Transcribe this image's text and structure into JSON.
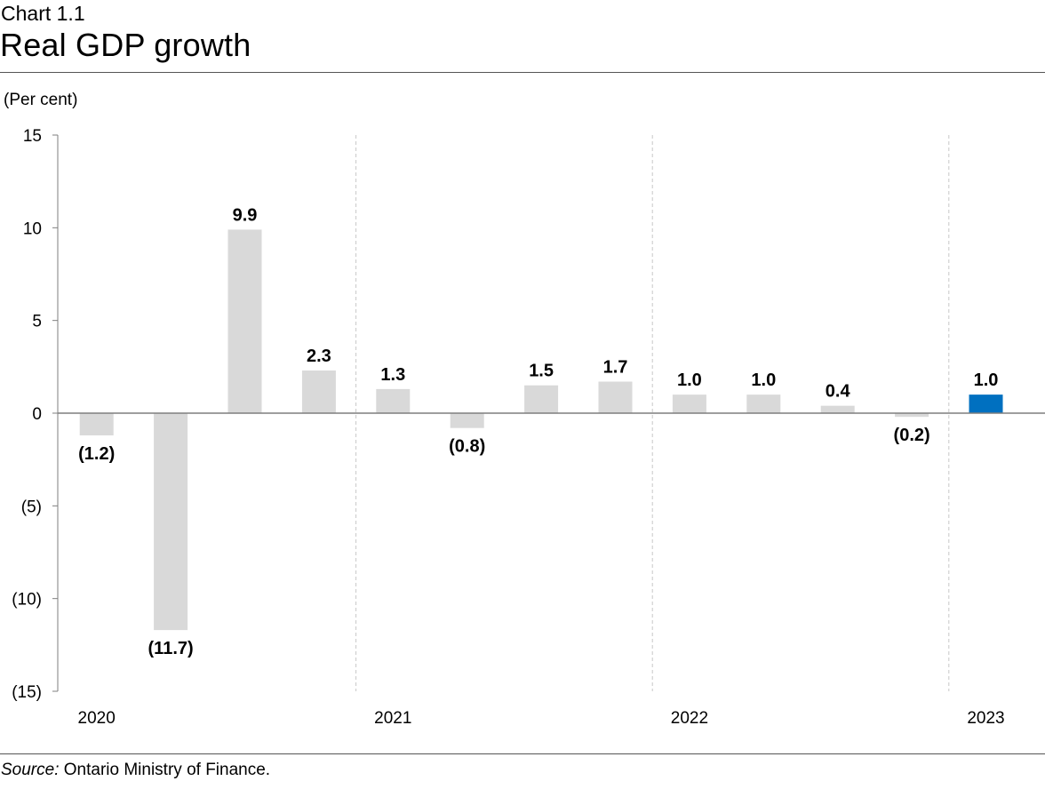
{
  "header": {
    "chart_number": "Chart 1.1",
    "title": "Real GDP growth"
  },
  "unit_label": "(Per cent)",
  "source": {
    "prefix": "Source:",
    "text": " Ontario Ministry of Finance."
  },
  "colors": {
    "bar": "#d9d9d9",
    "highlight": "#0070c0",
    "axis": "#7f7f7f",
    "divider": "#c8c8c8"
  },
  "chart_data": {
    "type": "bar",
    "title": "Real GDP growth",
    "ylabel": "(Per cent)",
    "xlabel": "",
    "ylim": [
      -15,
      15
    ],
    "yticks": [
      15,
      10,
      5,
      0,
      -5,
      -10,
      -15
    ],
    "ytick_labels": [
      "15",
      "10",
      "5",
      "0",
      "(5)",
      "(10)",
      "(15)"
    ],
    "year_labels": [
      "2020",
      "2021",
      "2022",
      "2023"
    ],
    "values": [
      -1.2,
      -11.7,
      9.9,
      2.3,
      1.3,
      -0.8,
      1.5,
      1.7,
      1.0,
      1.0,
      0.4,
      -0.2,
      1.0
    ],
    "value_labels": [
      "(1.2)",
      "(11.7)",
      "9.9",
      "2.3",
      "1.3",
      "(0.8)",
      "1.5",
      "1.7",
      "1.0",
      "1.0",
      "0.4",
      "(0.2)",
      "1.0"
    ],
    "highlight_index": 12,
    "grid": false,
    "legend": "none"
  }
}
